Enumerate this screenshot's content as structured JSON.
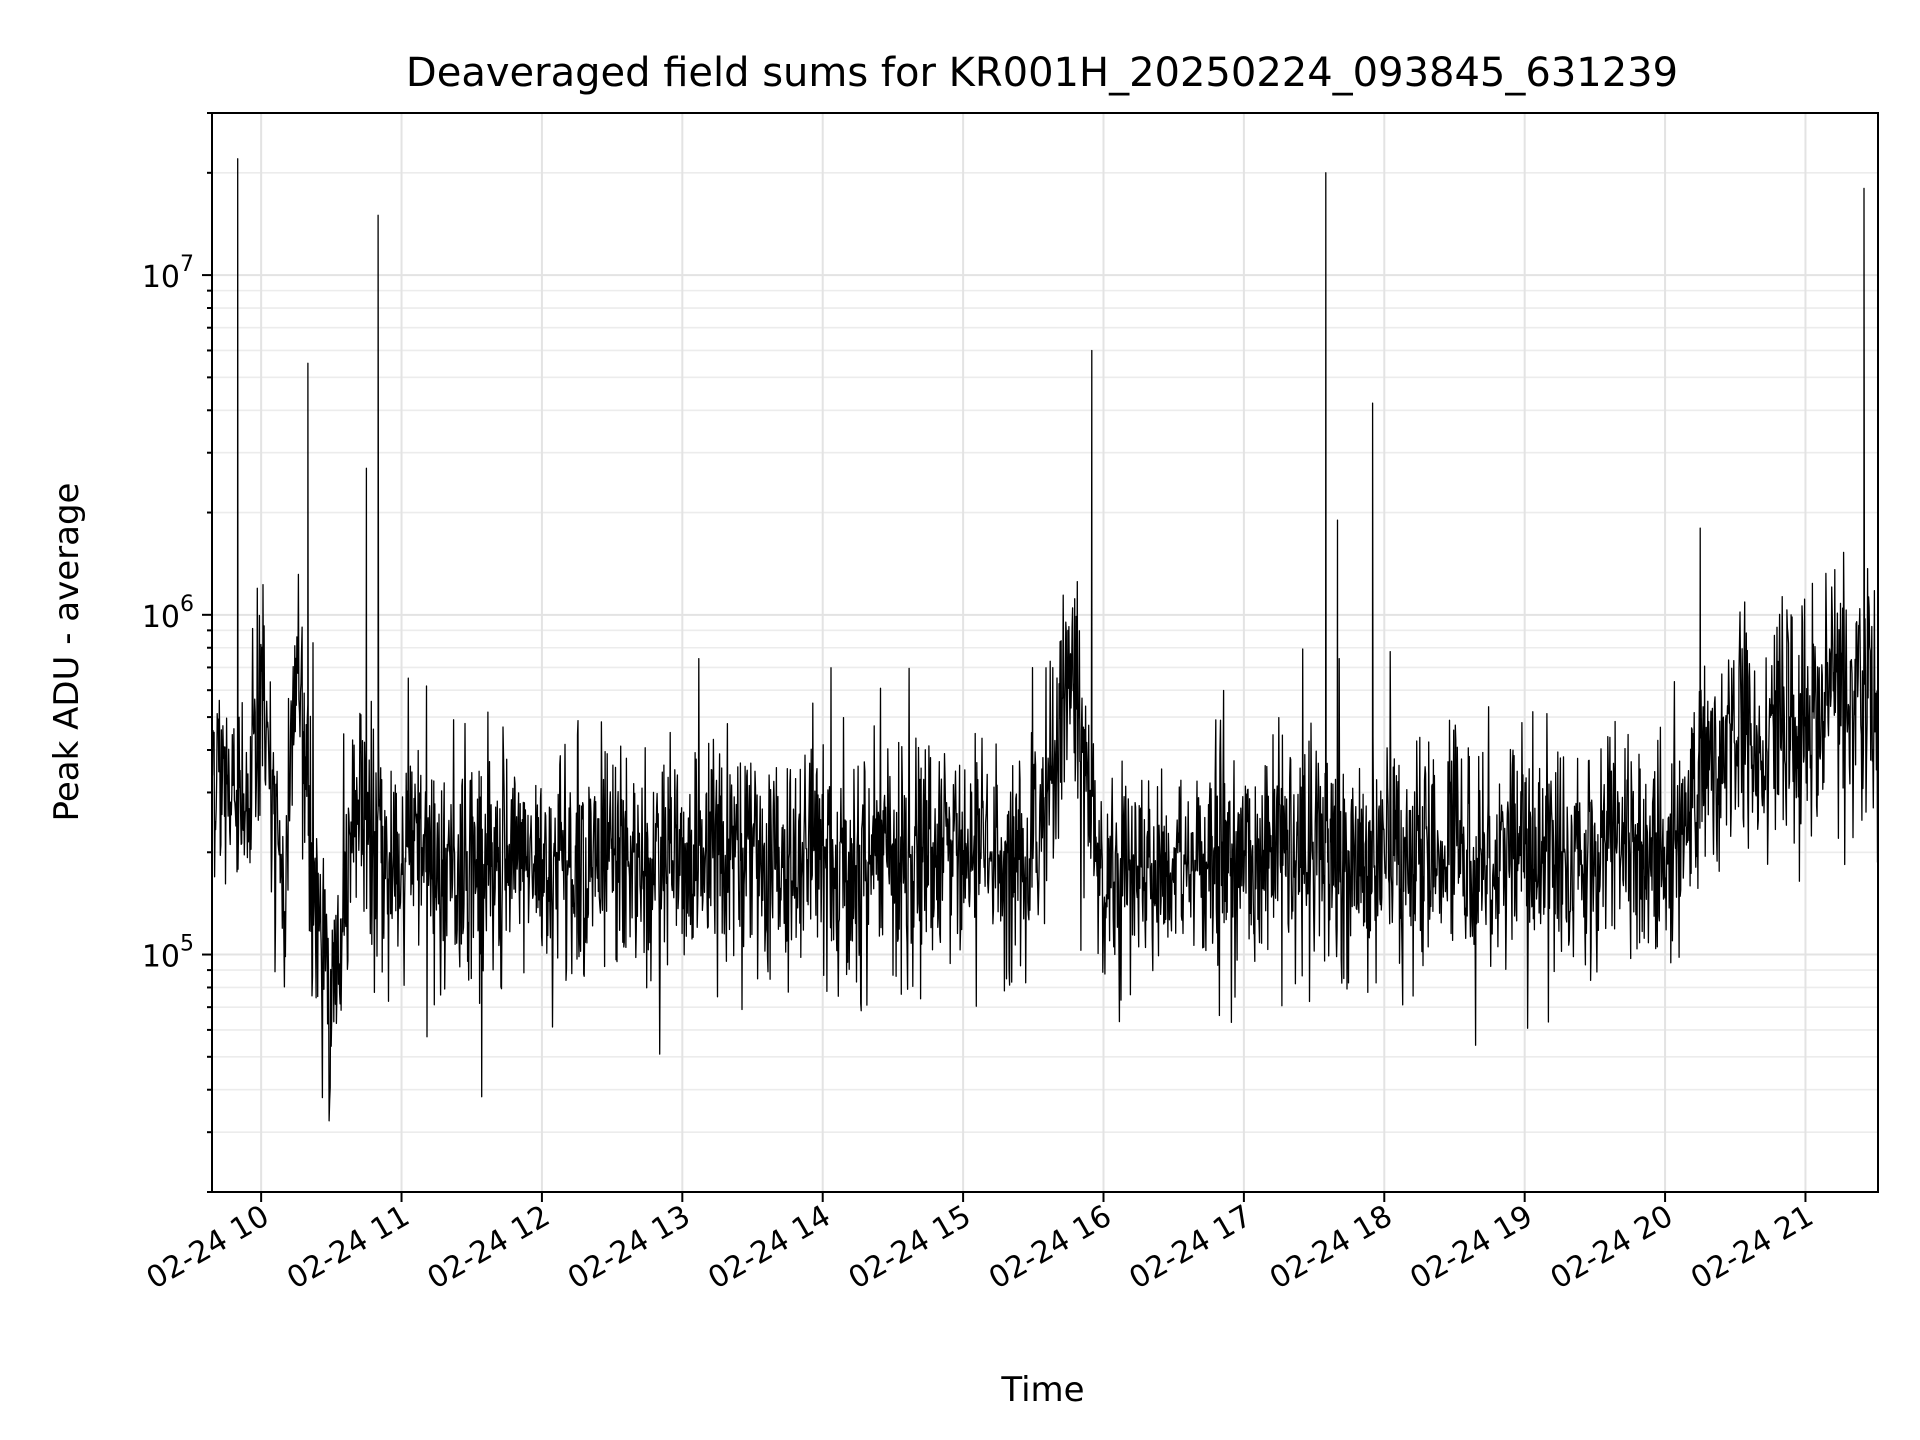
{
  "chart_data": {
    "type": "line",
    "title": "Deaveraged field sums for KR001H_20250224_093845_631239",
    "xlabel": "Time",
    "ylabel": "Peak ADU - average",
    "yscale": "log",
    "ylim": [
      20000,
      30000000
    ],
    "xlim": [
      "2025-02-24 09:39",
      "2025-02-24 21:31"
    ],
    "grid": true,
    "color": "#000000",
    "x_ticks": [
      {
        "label": "02-24 10",
        "time": "2025-02-24 10:00"
      },
      {
        "label": "02-24 11",
        "time": "2025-02-24 11:00"
      },
      {
        "label": "02-24 12",
        "time": "2025-02-24 12:00"
      },
      {
        "label": "02-24 13",
        "time": "2025-02-24 13:00"
      },
      {
        "label": "02-24 14",
        "time": "2025-02-24 14:00"
      },
      {
        "label": "02-24 15",
        "time": "2025-02-24 15:00"
      },
      {
        "label": "02-24 16",
        "time": "2025-02-24 16:00"
      },
      {
        "label": "02-24 17",
        "time": "2025-02-24 17:00"
      },
      {
        "label": "02-24 18",
        "time": "2025-02-24 18:00"
      },
      {
        "label": "02-24 19",
        "time": "2025-02-24 19:00"
      },
      {
        "label": "02-24 20",
        "time": "2025-02-24 20:00"
      },
      {
        "label": "02-24 21",
        "time": "2025-02-24 21:00"
      }
    ],
    "y_ticks": [
      {
        "base": "10",
        "exp": "5",
        "value": 100000
      },
      {
        "base": "10",
        "exp": "6",
        "value": 1000000
      },
      {
        "base": "10",
        "exp": "7",
        "value": 10000000
      }
    ],
    "series": [
      {
        "x": [
          "2025-02-24 09:39",
          "2025-02-24 09:45",
          "2025-02-24 09:50",
          "2025-02-24 09:55",
          "2025-02-24 10:00",
          "2025-02-24 10:05",
          "2025-02-24 10:10",
          "2025-02-24 10:15",
          "2025-02-24 10:20",
          "2025-02-24 10:25",
          "2025-02-24 10:30",
          "2025-02-24 10:35",
          "2025-02-24 10:40",
          "2025-02-24 10:45",
          "2025-02-24 10:50",
          "2025-02-24 10:55",
          "2025-02-24 11:00",
          "2025-02-24 11:15",
          "2025-02-24 11:30",
          "2025-02-24 11:45",
          "2025-02-24 12:00",
          "2025-02-24 12:15",
          "2025-02-24 12:30",
          "2025-02-24 12:45",
          "2025-02-24 13:00",
          "2025-02-24 13:15",
          "2025-02-24 13:30",
          "2025-02-24 13:45",
          "2025-02-24 14:00",
          "2025-02-24 14:15",
          "2025-02-24 14:30",
          "2025-02-24 14:45",
          "2025-02-24 15:00",
          "2025-02-24 15:15",
          "2025-02-24 15:30",
          "2025-02-24 15:45",
          "2025-02-24 15:55",
          "2025-02-24 16:00",
          "2025-02-24 16:15",
          "2025-02-24 16:30",
          "2025-02-24 16:45",
          "2025-02-24 17:00",
          "2025-02-24 17:15",
          "2025-02-24 17:30",
          "2025-02-24 17:35",
          "2025-02-24 17:40",
          "2025-02-24 17:55",
          "2025-02-24 18:00",
          "2025-02-24 18:15",
          "2025-02-24 18:30",
          "2025-02-24 18:45",
          "2025-02-24 19:00",
          "2025-02-24 19:15",
          "2025-02-24 19:30",
          "2025-02-24 19:45",
          "2025-02-24 20:00",
          "2025-02-24 20:05",
          "2025-02-24 20:10",
          "2025-02-24 20:15",
          "2025-02-24 20:30",
          "2025-02-24 20:45",
          "2025-02-24 21:00",
          "2025-02-24 21:15",
          "2025-02-24 21:25",
          "2025-02-24 21:31"
        ],
        "y": [
          400000,
          300000,
          22000000,
          250000,
          650000,
          250000,
          120000,
          900000,
          5500000,
          100000,
          80000,
          120000,
          300000,
          2700000,
          15000000,
          160000,
          200000,
          180000,
          190000,
          170000,
          190000,
          180000,
          200000,
          175000,
          190000,
          185000,
          195000,
          180000,
          190000,
          185000,
          200000,
          190000,
          195000,
          185000,
          190000,
          700000,
          6000000,
          170000,
          175000,
          180000,
          185000,
          190000,
          200000,
          195000,
          20000000,
          1900000,
          4200000,
          190000,
          200000,
          210000,
          195000,
          200000,
          190000,
          210000,
          200000,
          190000,
          180000,
          280000,
          1800000,
          480000,
          450000,
          500000,
          550000,
          18000000,
          600000
        ]
      }
    ]
  }
}
